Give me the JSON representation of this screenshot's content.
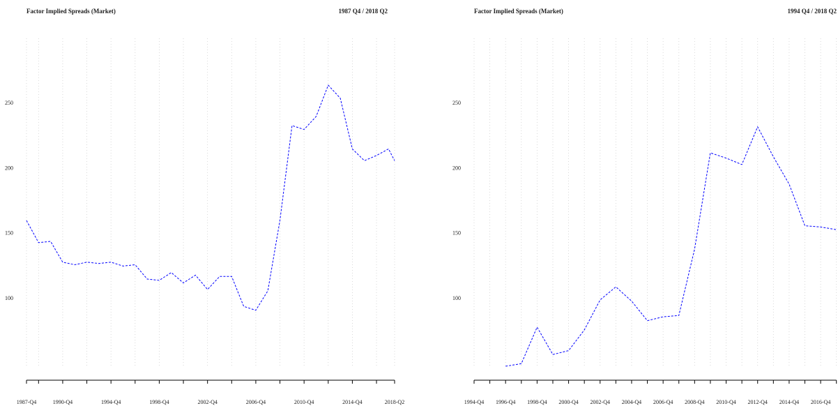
{
  "chart_data": [
    {
      "type": "line",
      "title": "Factor Implied Spreads (Market)",
      "subtitle": "1987 Q4 / 2018 Q2",
      "x": [
        "1987-Q4",
        "1988-Q4",
        "1989-Q4",
        "1990-Q4",
        "1991-Q4",
        "1992-Q4",
        "1993-Q4",
        "1994-Q4",
        "1995-Q4",
        "1996-Q4",
        "1997-Q4",
        "1998-Q4",
        "1999-Q4",
        "2000-Q4",
        "2001-Q4",
        "2002-Q4",
        "2003-Q4",
        "2004-Q4",
        "2005-Q4",
        "2006-Q4",
        "2007-Q4",
        "2008-Q4",
        "2009-Q4",
        "2010-Q4",
        "2011-Q4",
        "2012-Q4",
        "2013-Q4",
        "2014-Q4",
        "2015-Q4",
        "2016-Q4",
        "2017-Q4",
        "2018-Q2"
      ],
      "series": [
        {
          "color": "#0000ff",
          "values": [
            160,
            143,
            144,
            128,
            126,
            128,
            127,
            128,
            125,
            126,
            115,
            114,
            120,
            112,
            118,
            107,
            117,
            117,
            94,
            91,
            106,
            160,
            233,
            230,
            240,
            264,
            254,
            215,
            206,
            210,
            215,
            206
          ]
        }
      ],
      "xlim": [
        "1987-Q4",
        "2018-Q2"
      ],
      "xticks": [
        "1987-Q4",
        "1990-Q4",
        "1994-Q4",
        "1998-Q4",
        "2002-Q4",
        "2006-Q4",
        "2010-Q4",
        "2014-Q4",
        "2018-Q2"
      ],
      "xminor": [
        "1988-Q4",
        "1992-Q4",
        "1996-Q4",
        "2000-Q4",
        "2004-Q4",
        "2008-Q4",
        "2012-Q4",
        "2016-Q4"
      ],
      "ylim": [
        48,
        300
      ],
      "yticks": [
        100,
        150,
        200,
        250
      ],
      "grid": "x"
    },
    {
      "type": "line",
      "title": "Factor Implied Spreads (Market)",
      "subtitle": "1994 Q4 / 2018 Q2",
      "x": [
        "1996-Q4",
        "1997-Q4",
        "1998-Q4",
        "1999-Q4",
        "2000-Q4",
        "2001-Q4",
        "2002-Q4",
        "2003-Q4",
        "2004-Q4",
        "2005-Q4",
        "2006-Q4",
        "2007-Q4",
        "2008-Q4",
        "2009-Q4",
        "2010-Q4",
        "2011-Q4",
        "2012-Q4",
        "2013-Q4",
        "2014-Q4",
        "2015-Q4",
        "2016-Q4",
        "2017-Q4"
      ],
      "series": [
        {
          "color": "#0000ff",
          "values": [
            48,
            50,
            78,
            57,
            60,
            76,
            99,
            109,
            98,
            83,
            86,
            87,
            138,
            212,
            208,
            203,
            232,
            209,
            188,
            156,
            155,
            153
          ]
        }
      ],
      "xlim": [
        "1994-Q4",
        "2018-Q2"
      ],
      "xticks": [
        "1994-Q4",
        "1996-Q4",
        "1998-Q4",
        "2000-Q4",
        "2002-Q4",
        "2004-Q4",
        "2006-Q4",
        "2008-Q4",
        "2010-Q4",
        "2012-Q4",
        "2014-Q4",
        "2016-Q4"
      ],
      "xminor": [
        "1995-Q4",
        "1997-Q4",
        "1999-Q4",
        "2001-Q4",
        "2003-Q4",
        "2005-Q4",
        "2007-Q4",
        "2009-Q4",
        "2011-Q4",
        "2013-Q4",
        "2015-Q4",
        "2017-Q4"
      ],
      "ylim": [
        48,
        300
      ],
      "yticks": [
        100,
        150,
        200,
        250
      ],
      "grid": "x"
    }
  ]
}
